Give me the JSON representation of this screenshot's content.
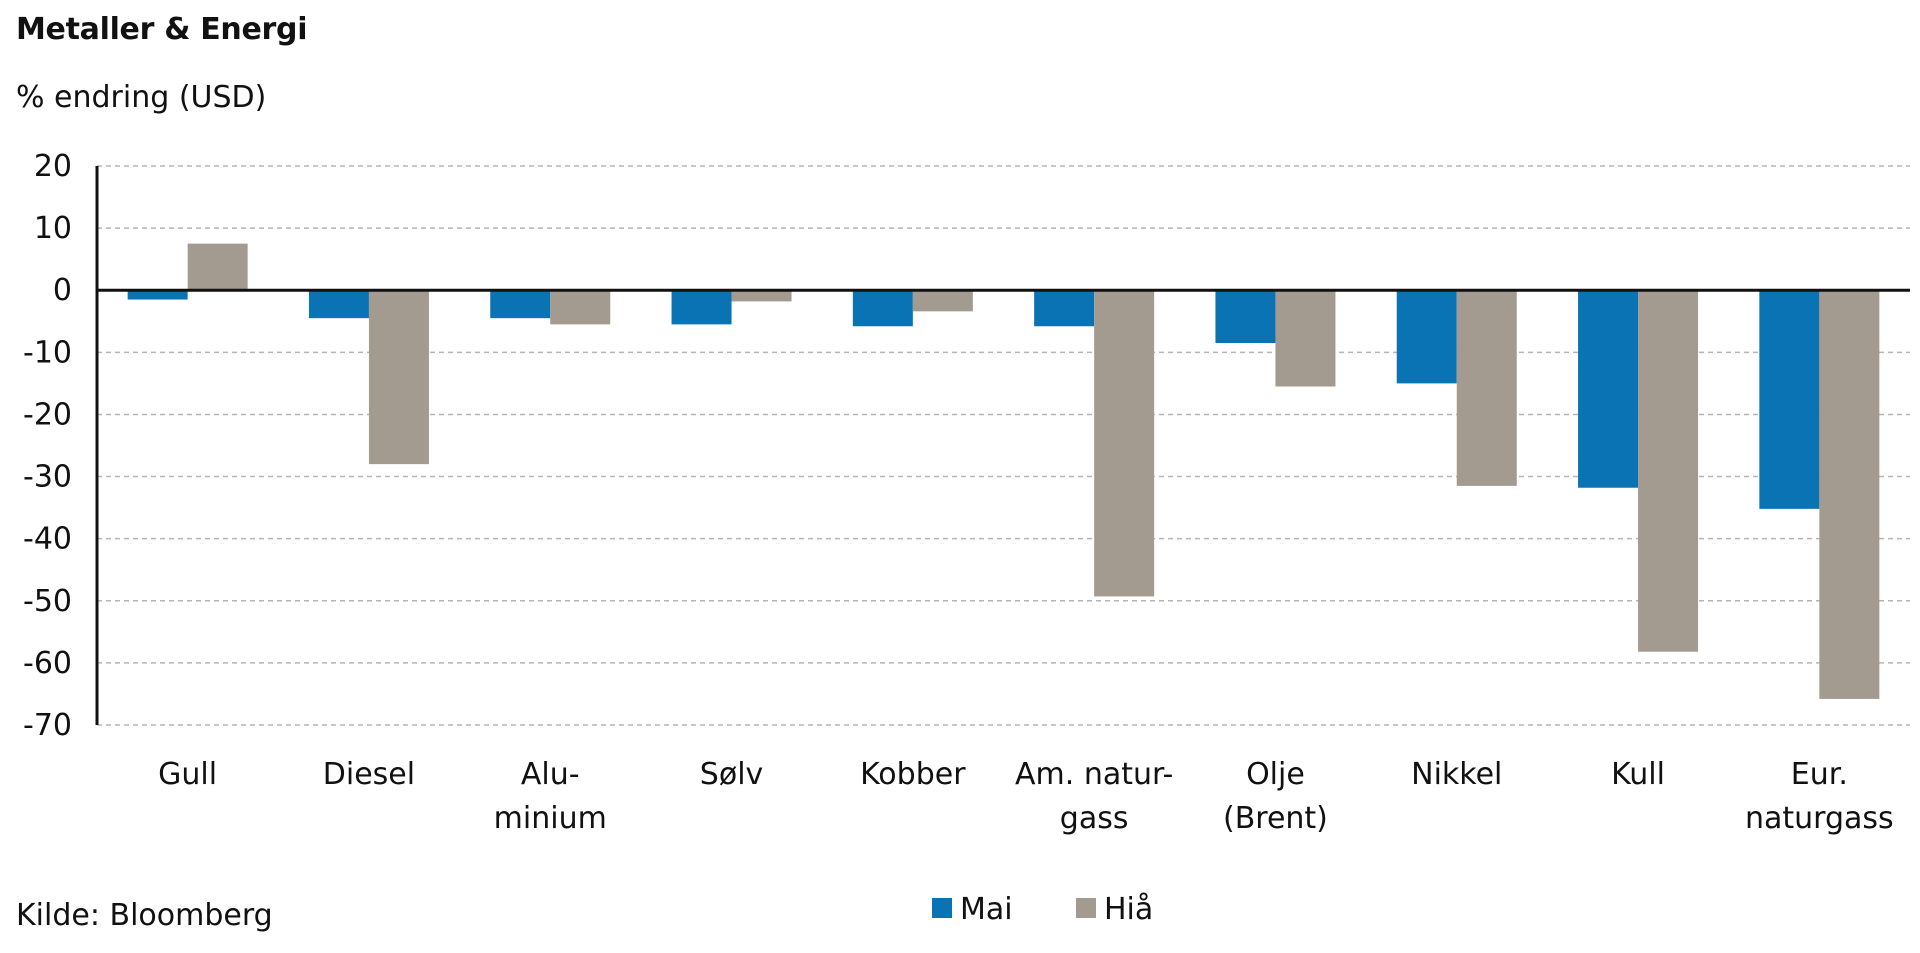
{
  "header": {
    "title": "Metaller & Energi",
    "subtitle": "% endring (USD)"
  },
  "footer": {
    "source": "Kilde: Bloomberg"
  },
  "chart_data": {
    "type": "bar",
    "title": "Metaller & Energi",
    "ylabel": "% endring (USD)",
    "xlabel": "",
    "ylim": [
      -70,
      20
    ],
    "yticks": [
      20,
      10,
      0,
      -10,
      -20,
      -30,
      -40,
      -50,
      -60,
      -70
    ],
    "grid": true,
    "legend_position": "bottom-center",
    "categories": [
      [
        "Gull"
      ],
      [
        "Diesel"
      ],
      [
        "Alu-",
        "minium"
      ],
      [
        "Sølv"
      ],
      [
        "Kobber"
      ],
      [
        "Am. natur-",
        "gass"
      ],
      [
        "Olje",
        "(Brent)"
      ],
      [
        "Nikkel"
      ],
      [
        "Kull"
      ],
      [
        "Eur.",
        "naturgass"
      ]
    ],
    "series": [
      {
        "name": "Mai",
        "color": "#0A73B4",
        "values": [
          -1.5,
          -4.5,
          -4.5,
          -5.5,
          -5.8,
          -5.8,
          -8.5,
          -15,
          -31.8,
          -35.2
        ]
      },
      {
        "name": "Hiå",
        "color": "#A39A90",
        "values": [
          7.5,
          -28,
          -5.5,
          -1.8,
          -3.4,
          -49.3,
          -15.5,
          -31.5,
          -58.2,
          -65.8
        ]
      }
    ]
  }
}
